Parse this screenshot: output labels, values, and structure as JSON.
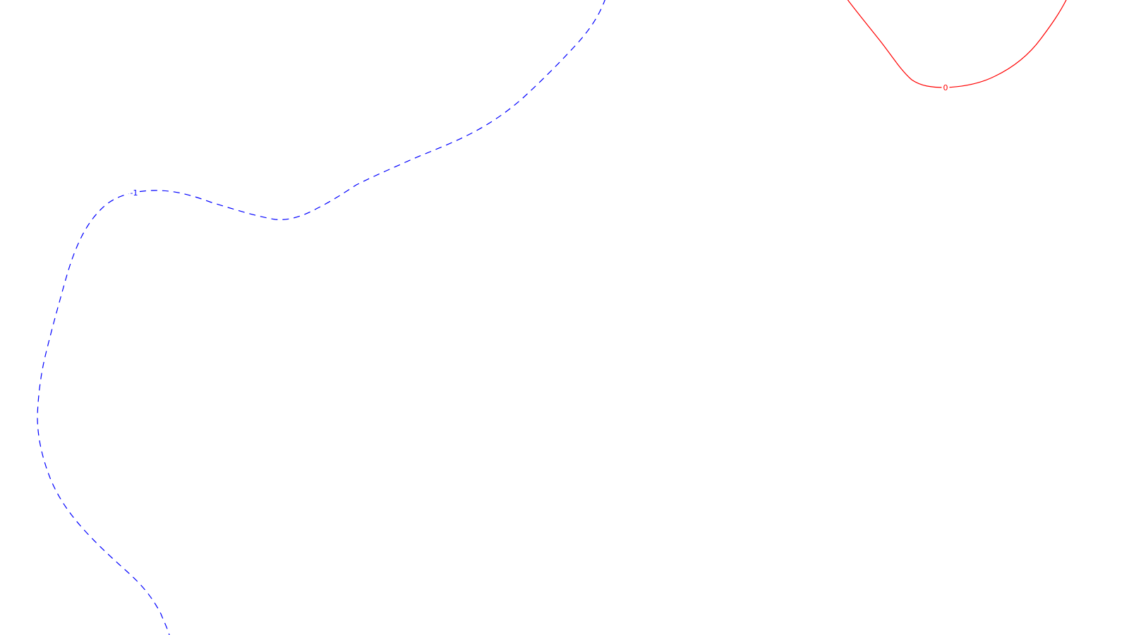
{
  "chart_data": {
    "type": "contour",
    "title": "",
    "xlabel": "",
    "ylabel": "",
    "grid": false,
    "legend": "none",
    "series": [
      {
        "level_label": "-1",
        "color": "#0000ff",
        "line_style": "dashed"
      },
      {
        "level_label": "0",
        "color": "#ff0000",
        "line_style": "solid"
      }
    ]
  }
}
